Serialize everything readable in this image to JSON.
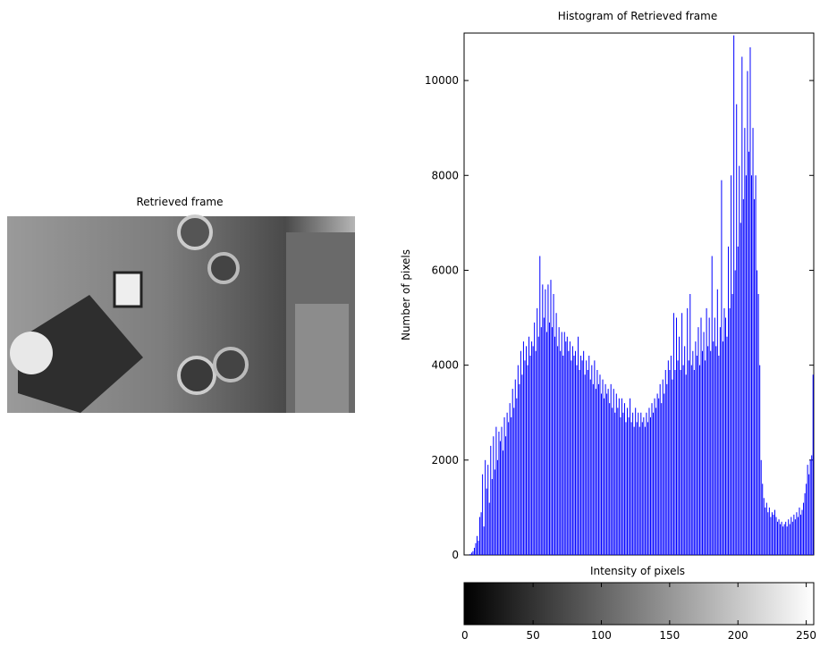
{
  "image_panel": {
    "title": "Retrieved frame"
  },
  "chart_data": {
    "type": "stem",
    "title": "Histogram of Retrieved frame",
    "ylabel": "Number of pixels",
    "xlabel": "Intensity of pixels",
    "color": "#0000ff",
    "xlim": [
      -0.5,
      255.5
    ],
    "ylim": [
      0,
      11000
    ],
    "yticks": [
      0,
      2000,
      4000,
      6000,
      8000,
      10000
    ],
    "xticks": [
      0,
      50,
      100,
      150,
      200,
      250
    ],
    "colorbar": "gray",
    "x": [
      0,
      1,
      2,
      3,
      4,
      5,
      6,
      7,
      8,
      9,
      10,
      11,
      12,
      13,
      14,
      15,
      16,
      17,
      18,
      19,
      20,
      21,
      22,
      23,
      24,
      25,
      26,
      27,
      28,
      29,
      30,
      31,
      32,
      33,
      34,
      35,
      36,
      37,
      38,
      39,
      40,
      41,
      42,
      43,
      44,
      45,
      46,
      47,
      48,
      49,
      50,
      51,
      52,
      53,
      54,
      55,
      56,
      57,
      58,
      59,
      60,
      61,
      62,
      63,
      64,
      65,
      66,
      67,
      68,
      69,
      70,
      71,
      72,
      73,
      74,
      75,
      76,
      77,
      78,
      79,
      80,
      81,
      82,
      83,
      84,
      85,
      86,
      87,
      88,
      89,
      90,
      91,
      92,
      93,
      94,
      95,
      96,
      97,
      98,
      99,
      100,
      101,
      102,
      103,
      104,
      105,
      106,
      107,
      108,
      109,
      110,
      111,
      112,
      113,
      114,
      115,
      116,
      117,
      118,
      119,
      120,
      121,
      122,
      123,
      124,
      125,
      126,
      127,
      128,
      129,
      130,
      131,
      132,
      133,
      134,
      135,
      136,
      137,
      138,
      139,
      140,
      141,
      142,
      143,
      144,
      145,
      146,
      147,
      148,
      149,
      150,
      151,
      152,
      153,
      154,
      155,
      156,
      157,
      158,
      159,
      160,
      161,
      162,
      163,
      164,
      165,
      166,
      167,
      168,
      169,
      170,
      171,
      172,
      173,
      174,
      175,
      176,
      177,
      178,
      179,
      180,
      181,
      182,
      183,
      184,
      185,
      186,
      187,
      188,
      189,
      190,
      191,
      192,
      193,
      194,
      195,
      196,
      197,
      198,
      199,
      200,
      201,
      202,
      203,
      204,
      205,
      206,
      207,
      208,
      209,
      210,
      211,
      212,
      213,
      214,
      215,
      216,
      217,
      218,
      219,
      220,
      221,
      222,
      223,
      224,
      225,
      226,
      227,
      228,
      229,
      230,
      231,
      232,
      233,
      234,
      235,
      236,
      237,
      238,
      239,
      240,
      241,
      242,
      243,
      244,
      245,
      246,
      247,
      248,
      249,
      250,
      251,
      252,
      253,
      254,
      255
    ],
    "values": [
      0,
      0,
      0,
      0,
      20,
      50,
      80,
      150,
      250,
      400,
      300,
      800,
      900,
      1700,
      600,
      2000,
      1400,
      1900,
      1100,
      2300,
      1600,
      2500,
      1800,
      2700,
      2000,
      2600,
      2400,
      2700,
      2200,
      2900,
      2500,
      3000,
      2800,
      3200,
      2900,
      3500,
      3100,
      3700,
      3300,
      4000,
      3600,
      4300,
      3800,
      4500,
      4100,
      4400,
      4000,
      4600,
      4200,
      4500,
      4400,
      4900,
      4300,
      5200,
      4600,
      6300,
      4800,
      5700,
      5000,
      5600,
      4700,
      5700,
      4900,
      5800,
      4800,
      5500,
      4600,
      5100,
      4400,
      4800,
      4300,
      4700,
      4200,
      4700,
      4500,
      4600,
      4300,
      4500,
      4100,
      4400,
      4200,
      4300,
      4000,
      4600,
      3900,
      4200,
      4100,
      4300,
      3800,
      4100,
      3900,
      4200,
      3700,
      4000,
      3600,
      4100,
      3500,
      3900,
      3600,
      3800,
      3400,
      3700,
      3300,
      3600,
      3400,
      3500,
      3200,
      3600,
      3100,
      3500,
      3000,
      3400,
      3100,
      3300,
      2900,
      3300,
      3000,
      3200,
      2800,
      3100,
      2900,
      3300,
      2800,
      3000,
      2700,
      3100,
      2800,
      3000,
      2700,
      3000,
      2800,
      2900,
      2700,
      3000,
      2800,
      3100,
      2900,
      3200,
      3000,
      3300,
      3100,
      3400,
      3300,
      3600,
      3200,
      3700,
      3400,
      3900,
      3600,
      4100,
      3900,
      4200,
      3700,
      5100,
      3900,
      5000,
      4100,
      4600,
      3900,
      5100,
      4000,
      4400,
      3800,
      5200,
      4100,
      5500,
      4000,
      4300,
      3900,
      4500,
      4200,
      4800,
      4000,
      5000,
      4300,
      4700,
      4100,
      5200,
      4400,
      5000,
      4300,
      6300,
      4500,
      5000,
      4400,
      5600,
      4200,
      4800,
      7900,
      4500,
      5200,
      5000,
      4600,
      6500,
      5200,
      8000,
      5500,
      10950,
      6000,
      9500,
      6500,
      8200,
      7000,
      10500,
      7500,
      9000,
      8000,
      10200,
      8500,
      10700,
      8000,
      9000,
      7500,
      8000,
      6000,
      5500,
      4000,
      2000,
      1500,
      1200,
      1000,
      1100,
      900,
      1000,
      800,
      900,
      850,
      950,
      800,
      700,
      750,
      650,
      700,
      600,
      650,
      700,
      600,
      750,
      650,
      800,
      700,
      850,
      750,
      900,
      800,
      1000,
      850,
      950,
      1100,
      1300,
      1500,
      1900,
      1700,
      2000,
      2100,
      3800
    ]
  }
}
